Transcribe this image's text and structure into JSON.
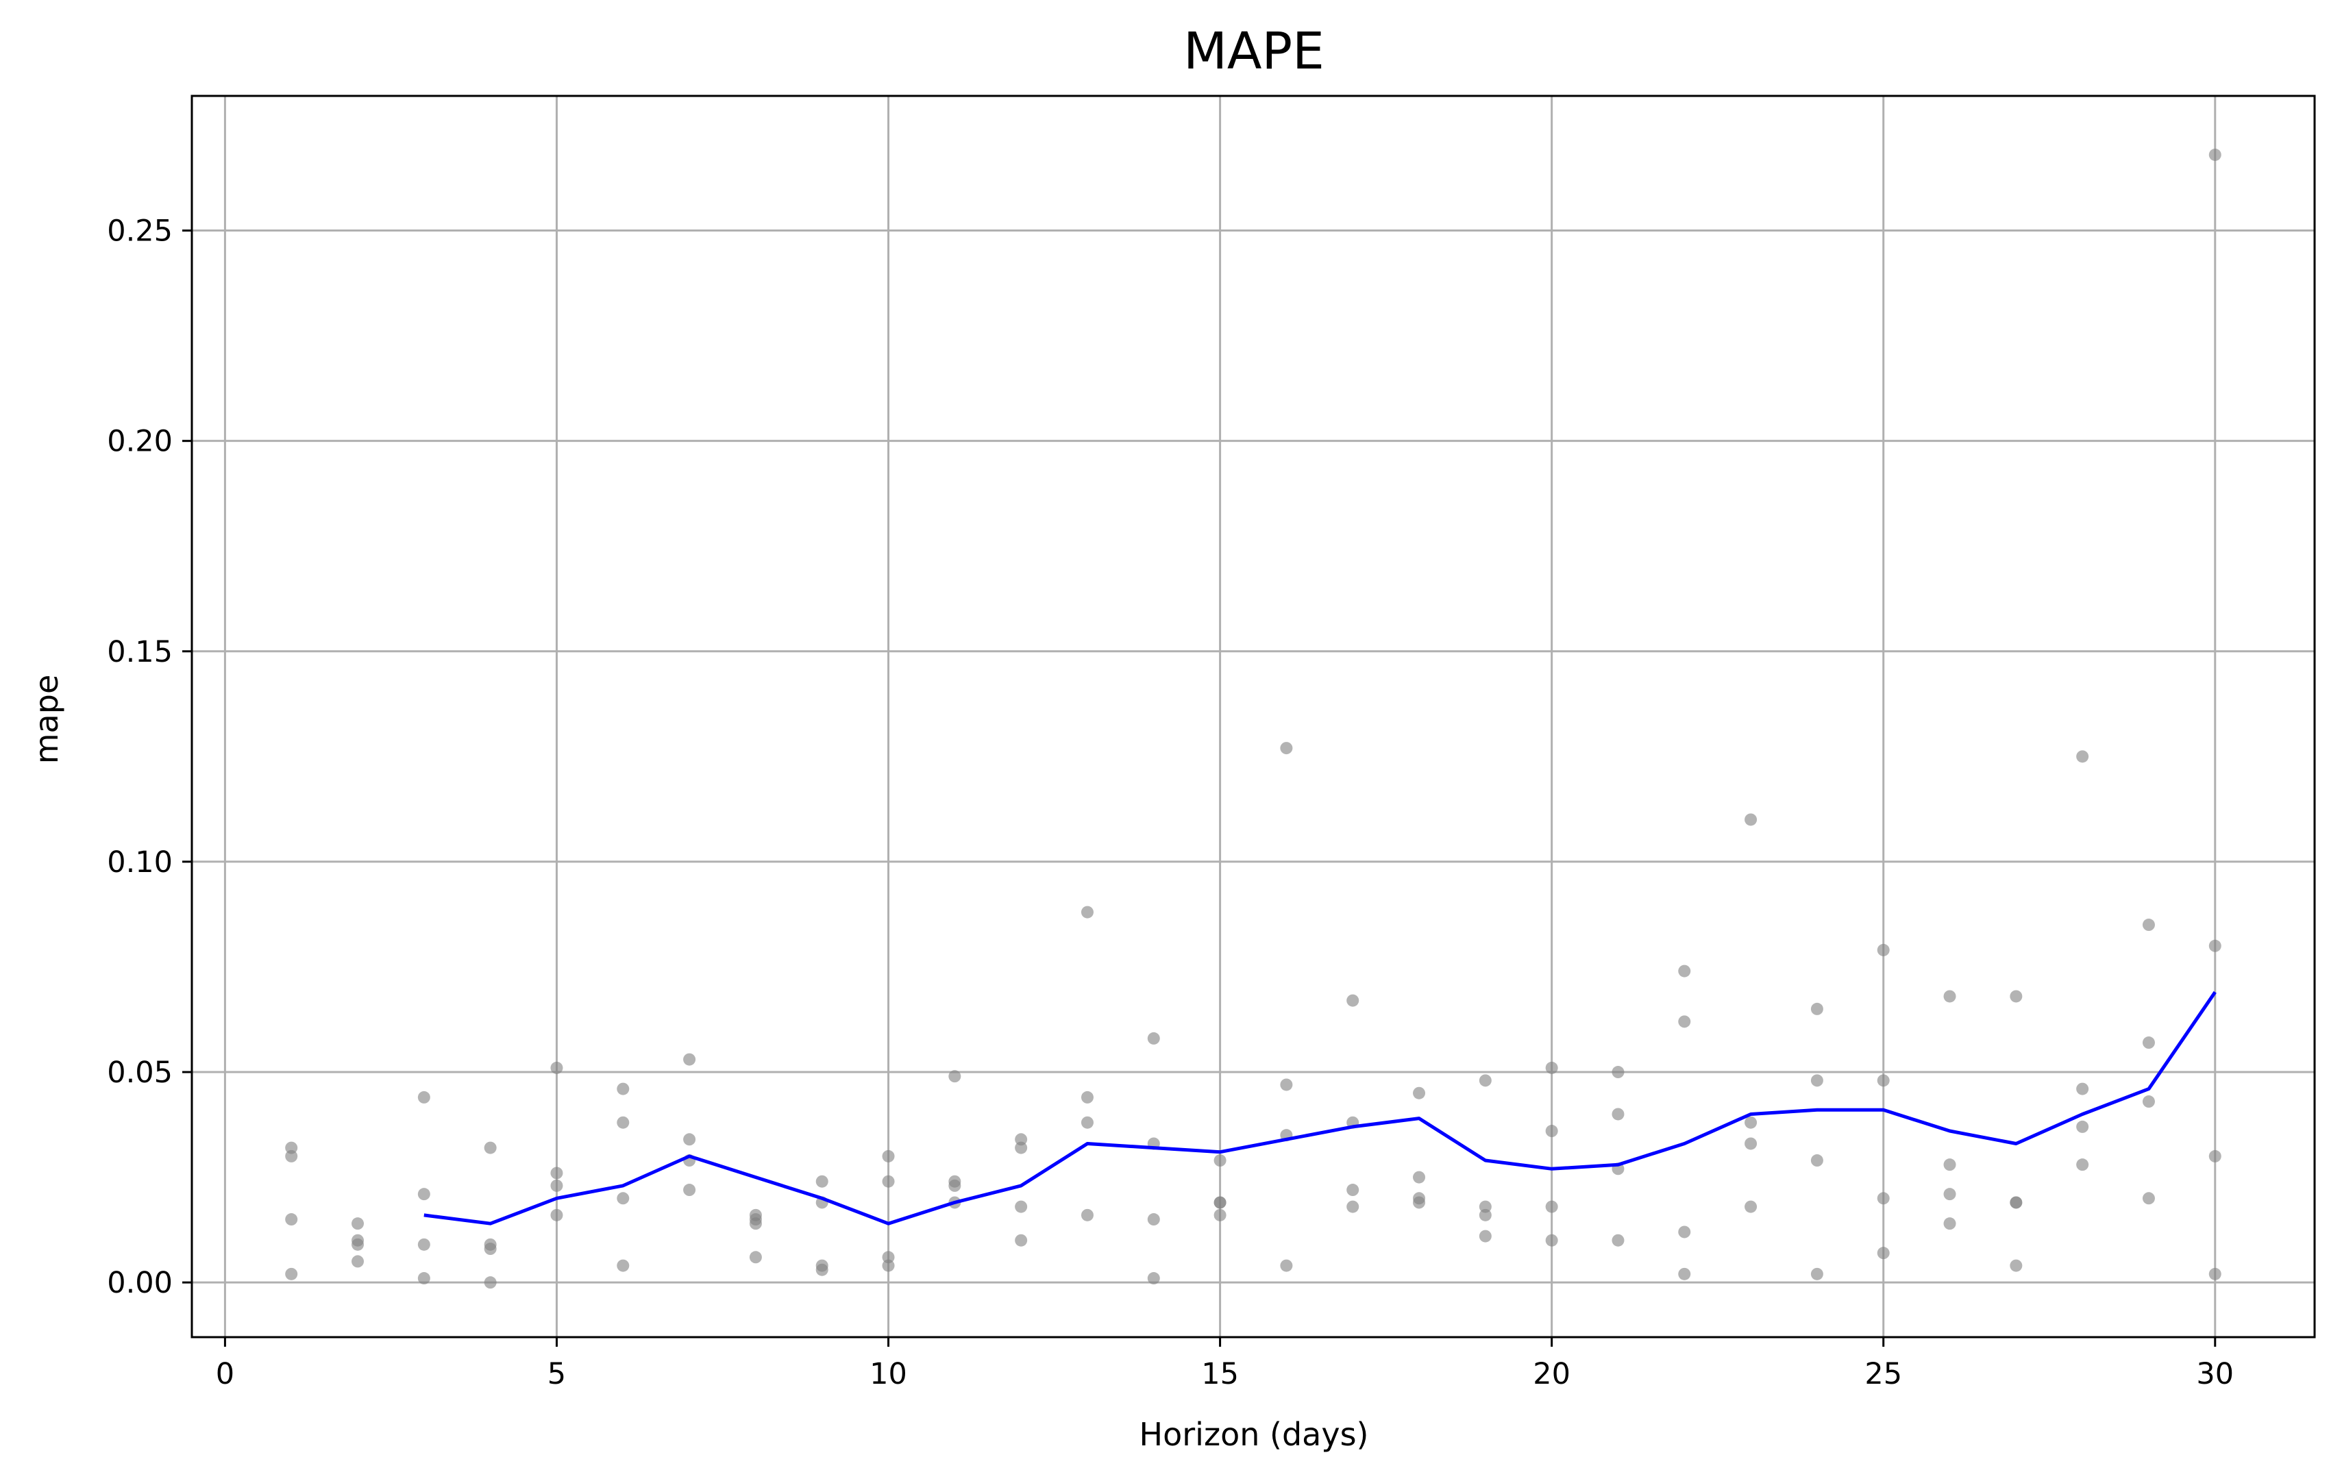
{
  "chart_data": {
    "type": "scatter",
    "title": "MAPE",
    "xlabel": "Horizon (days)",
    "ylabel": "mape",
    "xlim": [
      -0.5,
      31.5
    ],
    "ylim": [
      -0.013,
      0.282
    ],
    "xticks": [
      0,
      5,
      10,
      15,
      20,
      25,
      30
    ],
    "yticks": [
      0.0,
      0.05,
      0.1,
      0.15,
      0.2,
      0.25
    ],
    "xtick_labels": [
      "0",
      "5",
      "10",
      "15",
      "20",
      "25",
      "30"
    ],
    "ytick_labels": [
      "0.00",
      "0.05",
      "0.10",
      "0.15",
      "0.20",
      "0.25"
    ],
    "grid": true,
    "colors": {
      "points": "#808080",
      "line": "#0000ff",
      "grid": "#b0b0b0",
      "axes": "#000000"
    },
    "series": [
      {
        "type": "scatter",
        "points": [
          [
            1,
            0.032
          ],
          [
            1,
            0.03
          ],
          [
            1,
            0.015
          ],
          [
            1,
            0.002
          ],
          [
            2,
            0.014
          ],
          [
            2,
            0.01
          ],
          [
            2,
            0.009
          ],
          [
            2,
            0.005
          ],
          [
            3,
            0.044
          ],
          [
            3,
            0.021
          ],
          [
            3,
            0.009
          ],
          [
            3,
            0.001
          ],
          [
            4,
            0.032
          ],
          [
            4,
            0.009
          ],
          [
            4,
            0.008
          ],
          [
            4,
            0.0
          ],
          [
            5,
            0.051
          ],
          [
            5,
            0.026
          ],
          [
            5,
            0.023
          ],
          [
            5,
            0.016
          ],
          [
            6,
            0.046
          ],
          [
            6,
            0.038
          ],
          [
            6,
            0.02
          ],
          [
            6,
            0.004
          ],
          [
            7,
            0.053
          ],
          [
            7,
            0.034
          ],
          [
            7,
            0.029
          ],
          [
            7,
            0.022
          ],
          [
            8,
            0.016
          ],
          [
            8,
            0.015
          ],
          [
            8,
            0.014
          ],
          [
            8,
            0.006
          ],
          [
            9,
            0.024
          ],
          [
            9,
            0.019
          ],
          [
            9,
            0.004
          ],
          [
            9,
            0.003
          ],
          [
            10,
            0.03
          ],
          [
            10,
            0.024
          ],
          [
            10,
            0.006
          ],
          [
            10,
            0.004
          ],
          [
            11,
            0.049
          ],
          [
            11,
            0.024
          ],
          [
            11,
            0.023
          ],
          [
            11,
            0.019
          ],
          [
            12,
            0.034
          ],
          [
            12,
            0.032
          ],
          [
            12,
            0.018
          ],
          [
            12,
            0.01
          ],
          [
            13,
            0.088
          ],
          [
            13,
            0.044
          ],
          [
            13,
            0.038
          ],
          [
            13,
            0.016
          ],
          [
            14,
            0.058
          ],
          [
            14,
            0.033
          ],
          [
            14,
            0.015
          ],
          [
            14,
            0.001
          ],
          [
            15,
            0.029
          ],
          [
            15,
            0.019
          ],
          [
            15,
            0.019
          ],
          [
            15,
            0.016
          ],
          [
            16,
            0.127
          ],
          [
            16,
            0.047
          ],
          [
            16,
            0.035
          ],
          [
            16,
            0.004
          ],
          [
            17,
            0.067
          ],
          [
            17,
            0.038
          ],
          [
            17,
            0.022
          ],
          [
            17,
            0.018
          ],
          [
            18,
            0.045
          ],
          [
            18,
            0.025
          ],
          [
            18,
            0.02
          ],
          [
            18,
            0.019
          ],
          [
            19,
            0.048
          ],
          [
            19,
            0.018
          ],
          [
            19,
            0.016
          ],
          [
            19,
            0.011
          ],
          [
            20,
            0.051
          ],
          [
            20,
            0.036
          ],
          [
            20,
            0.018
          ],
          [
            20,
            0.01
          ],
          [
            21,
            0.05
          ],
          [
            21,
            0.04
          ],
          [
            21,
            0.027
          ],
          [
            21,
            0.01
          ],
          [
            22,
            0.074
          ],
          [
            22,
            0.062
          ],
          [
            22,
            0.012
          ],
          [
            22,
            0.002
          ],
          [
            23,
            0.11
          ],
          [
            23,
            0.038
          ],
          [
            23,
            0.033
          ],
          [
            23,
            0.018
          ],
          [
            24,
            0.065
          ],
          [
            24,
            0.048
          ],
          [
            24,
            0.029
          ],
          [
            24,
            0.002
          ],
          [
            25,
            0.079
          ],
          [
            25,
            0.048
          ],
          [
            25,
            0.02
          ],
          [
            25,
            0.007
          ],
          [
            26,
            0.068
          ],
          [
            26,
            0.028
          ],
          [
            26,
            0.021
          ],
          [
            26,
            0.014
          ],
          [
            27,
            0.068
          ],
          [
            27,
            0.019
          ],
          [
            27,
            0.019
          ],
          [
            27,
            0.004
          ],
          [
            28,
            0.125
          ],
          [
            28,
            0.046
          ],
          [
            28,
            0.037
          ],
          [
            28,
            0.028
          ],
          [
            29,
            0.085
          ],
          [
            29,
            0.057
          ],
          [
            29,
            0.043
          ],
          [
            29,
            0.02
          ],
          [
            30,
            0.268
          ],
          [
            30,
            0.08
          ],
          [
            30,
            0.03
          ],
          [
            30,
            0.002
          ]
        ]
      },
      {
        "type": "line",
        "x": [
          3,
          4,
          5,
          6,
          7,
          8,
          9,
          10,
          11,
          12,
          13,
          14,
          15,
          16,
          17,
          18,
          19,
          20,
          21,
          22,
          23,
          24,
          25,
          26,
          27,
          28,
          29,
          30
        ],
        "values": [
          0.016,
          0.014,
          0.02,
          0.023,
          0.03,
          0.025,
          0.02,
          0.014,
          0.019,
          0.023,
          0.033,
          0.032,
          0.031,
          0.034,
          0.037,
          0.039,
          0.029,
          0.027,
          0.028,
          0.033,
          0.04,
          0.041,
          0.041,
          0.036,
          0.033,
          0.04,
          0.046,
          0.069
        ]
      }
    ]
  }
}
